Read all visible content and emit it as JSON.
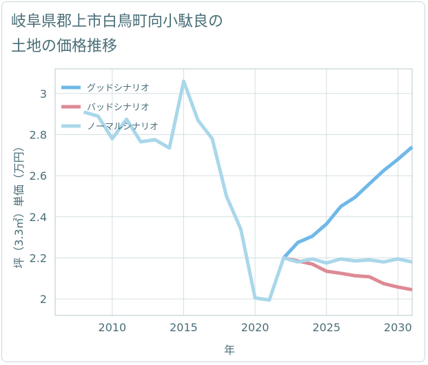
{
  "title": {
    "line1": "岐阜県郡上市白鳥町向小駄良の",
    "line2": "土地の価格推移"
  },
  "chart_data": {
    "type": "line",
    "title": "岐阜県郡上市白鳥町向小駄良の土地の価格推移",
    "xlabel": "年",
    "ylabel": "坪（3.3㎡）単価（万円）",
    "xlim": [
      2006,
      2031
    ],
    "ylim": [
      1.92,
      3.12
    ],
    "xticks": [
      2010,
      2015,
      2020,
      2025,
      2030
    ],
    "yticks": [
      2,
      2.2,
      2.4,
      2.6,
      2.8,
      3
    ],
    "ytick_labels": [
      "2",
      "2.2",
      "2.4",
      "2.6",
      "2.8",
      "3"
    ],
    "xtick_labels": [
      "2010",
      "2015",
      "2020",
      "2025",
      "2030"
    ],
    "grid": true,
    "legend_position": "top-left",
    "series": [
      {
        "name": "グッドシナリオ",
        "color": "#6fb8e8",
        "x": [
          2022,
          2023,
          2024,
          2025,
          2026,
          2027,
          2028,
          2029,
          2030,
          2031
        ],
        "y": [
          2.2,
          2.275,
          2.305,
          2.365,
          2.45,
          2.495,
          2.56,
          2.625,
          2.68,
          2.74
        ]
      },
      {
        "name": "バッドシナリオ",
        "color": "#dd8a94",
        "x": [
          2022,
          2023,
          2024,
          2025,
          2026,
          2027,
          2028,
          2029,
          2030,
          2031
        ],
        "y": [
          2.2,
          2.185,
          2.17,
          2.135,
          2.125,
          2.113,
          2.108,
          2.075,
          2.058,
          2.045
        ]
      },
      {
        "name": "ノーマルシナリオ",
        "color": "#a9d7ea",
        "x": [
          2008,
          2009,
          2010,
          2011,
          2012,
          2013,
          2014,
          2015,
          2016,
          2017,
          2018,
          2019,
          2020,
          2021,
          2022,
          2023,
          2024,
          2025,
          2026,
          2027,
          2028,
          2029,
          2030,
          2031
        ],
        "y": [
          2.91,
          2.89,
          2.78,
          2.875,
          2.765,
          2.775,
          2.735,
          3.06,
          2.87,
          2.78,
          2.5,
          2.34,
          2.005,
          1.995,
          2.2,
          2.18,
          2.195,
          2.175,
          2.195,
          2.185,
          2.19,
          2.18,
          2.195,
          2.18
        ]
      }
    ]
  }
}
